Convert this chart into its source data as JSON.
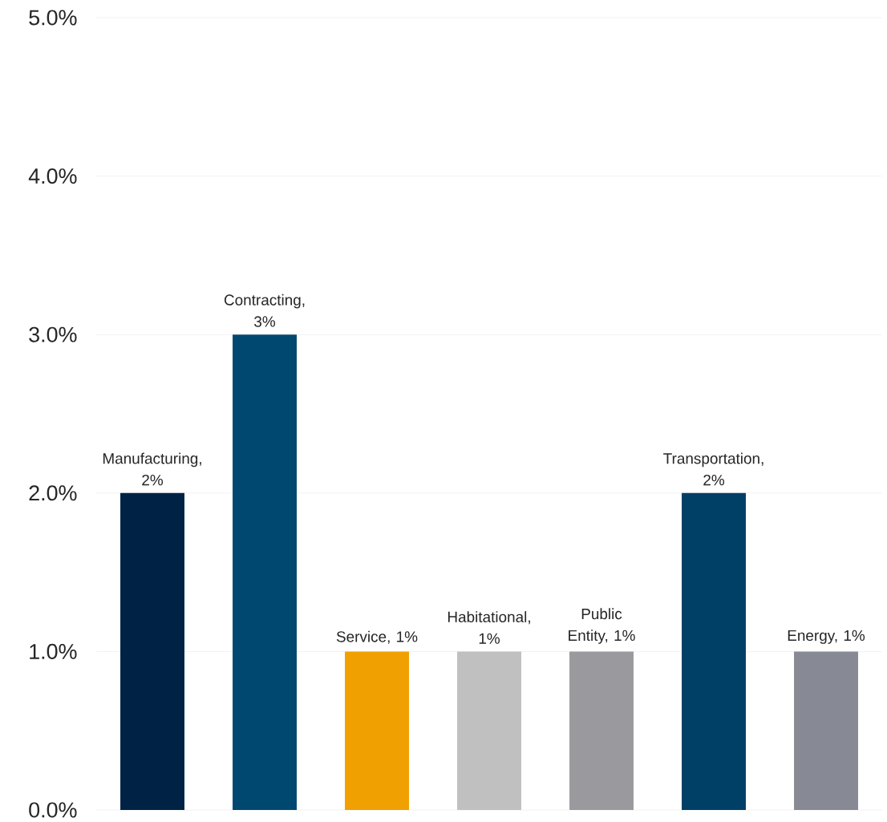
{
  "chart_data": {
    "type": "bar",
    "categories": [
      null,
      null,
      null,
      null,
      null,
      null,
      null
    ],
    "values": [
      2,
      3,
      1,
      1,
      1,
      2,
      1
    ],
    "colors": [
      "#002244",
      "#004870",
      "#f0a000",
      "#c0c0c0",
      "#9a9a9e",
      "#003f66",
      "#878a94"
    ],
    "value_labels": [
      "Manufacturing, 2%",
      "Contracting, 3%",
      "Service, 1%",
      "Habitational, 1%",
      "Public Entity, 1%",
      "Transportation, 2%",
      "Energy, 1%"
    ],
    "ylim": [
      0,
      5
    ],
    "yticks": [
      {
        "value": 0,
        "label": "0.0%"
      },
      {
        "value": 1,
        "label": "1.0%"
      },
      {
        "value": 2,
        "label": "2.0%"
      },
      {
        "value": 3,
        "label": "3.0%"
      },
      {
        "value": 4,
        "label": "4.0%"
      },
      {
        "value": 5,
        "label": "5.0%"
      }
    ],
    "grid": "y"
  }
}
